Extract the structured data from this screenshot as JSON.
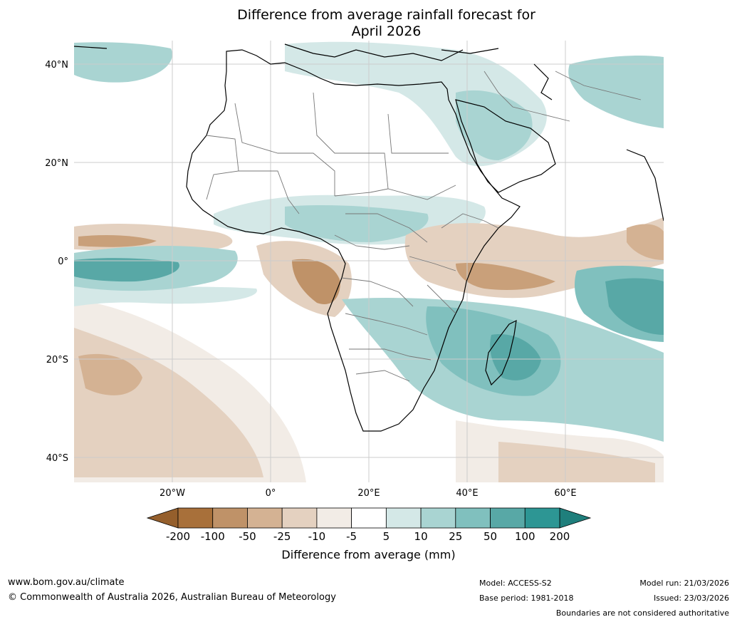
{
  "title": {
    "line1": "Difference from average rainfall forecast for",
    "line2": "April 2026"
  },
  "map": {
    "lat_labels": [
      "40°N",
      "20°N",
      "0°",
      "20°S",
      "40°S"
    ],
    "lon_labels": [
      "20°W",
      "0°",
      "20°E",
      "40°E",
      "60°E"
    ]
  },
  "colorbar": {
    "labels": [
      "-200",
      "-100",
      "-50",
      "-25",
      "-10",
      "-5",
      "5",
      "10",
      "25",
      "50",
      "100",
      "200"
    ],
    "colors": [
      "#a8703a",
      "#bf9268",
      "#d4b293",
      "#e4d1c0",
      "#f2ece6",
      "#ffffff",
      "#d4e8e7",
      "#a9d4d2",
      "#80c0be",
      "#58a8a6",
      "#2d9694"
    ],
    "under_color": "#955f2c",
    "over_color": "#1f7f7c",
    "title": "Difference from average (mm)"
  },
  "footer": {
    "url": "www.bom.gov.au/climate",
    "copyright": "© Commonwealth of Australia 2026, Australian Bureau of Meteorology",
    "model": "Model: ACCESS-S2",
    "base_period": "Base period: 1981-2018",
    "model_run": "Model run: 21/03/2026",
    "issued": "Issued: 23/03/2026",
    "disclaimer": "Boundaries are not considered authoritative"
  }
}
